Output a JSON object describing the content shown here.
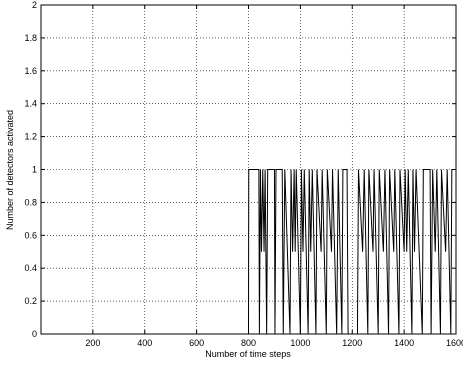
{
  "chart_data": {
    "type": "line",
    "xlabel": "Number of time steps",
    "ylabel": "Number of detectors activated",
    "xlim": [
      0,
      1600
    ],
    "ylim": [
      0,
      2
    ],
    "xticks": [
      200,
      400,
      600,
      800,
      1000,
      1200,
      1400,
      1600
    ],
    "yticks": [
      0,
      0.2,
      0.4,
      0.6,
      0.8,
      1,
      1.2,
      1.4,
      1.6,
      1.8,
      2
    ],
    "grid": true,
    "series": [
      {
        "color": "#000000",
        "x": [
          1,
          800,
          801,
          840,
          842,
          846,
          850,
          855,
          860,
          864,
          870,
          874,
          900,
          902,
          906,
          930,
          934,
          940,
          960,
          964,
          970,
          976,
          980,
          984,
          1000,
          1004,
          1010,
          1015,
          1030,
          1034,
          1040,
          1046,
          1060,
          1064,
          1080,
          1084,
          1100,
          1104,
          1120,
          1124,
          1140,
          1146,
          1160,
          1164,
          1180,
          1184,
          1220,
          1224,
          1240,
          1246,
          1260,
          1264,
          1280,
          1284,
          1300,
          1304,
          1320,
          1326,
          1340,
          1344,
          1360,
          1364,
          1380,
          1384,
          1400,
          1404,
          1410,
          1416,
          1430,
          1434,
          1440,
          1446,
          1470,
          1474,
          1500,
          1504,
          1510,
          1520,
          1526,
          1540,
          1544,
          1560,
          1566,
          1580,
          1584,
          1600
        ],
        "values": [
          0,
          0,
          1,
          1,
          0,
          1,
          0.5,
          1,
          0.5,
          1,
          0,
          1,
          1,
          0,
          1,
          1,
          0,
          1,
          0,
          1,
          0.5,
          1,
          0.5,
          1,
          0,
          1,
          0.5,
          1,
          0,
          1,
          0.5,
          1,
          0,
          1,
          0.5,
          1,
          0,
          1,
          0.5,
          1,
          0,
          1,
          0,
          1,
          1,
          0,
          0,
          1,
          0.5,
          1,
          0,
          1,
          0.5,
          1,
          0,
          1,
          0.5,
          1,
          0,
          1,
          0.5,
          1,
          0,
          1,
          0.5,
          1,
          0.5,
          1,
          0,
          1,
          0.5,
          1,
          0,
          1,
          1,
          0,
          1,
          0.5,
          1,
          0,
          1,
          0.5,
          1,
          0,
          1,
          1
        ]
      }
    ]
  }
}
